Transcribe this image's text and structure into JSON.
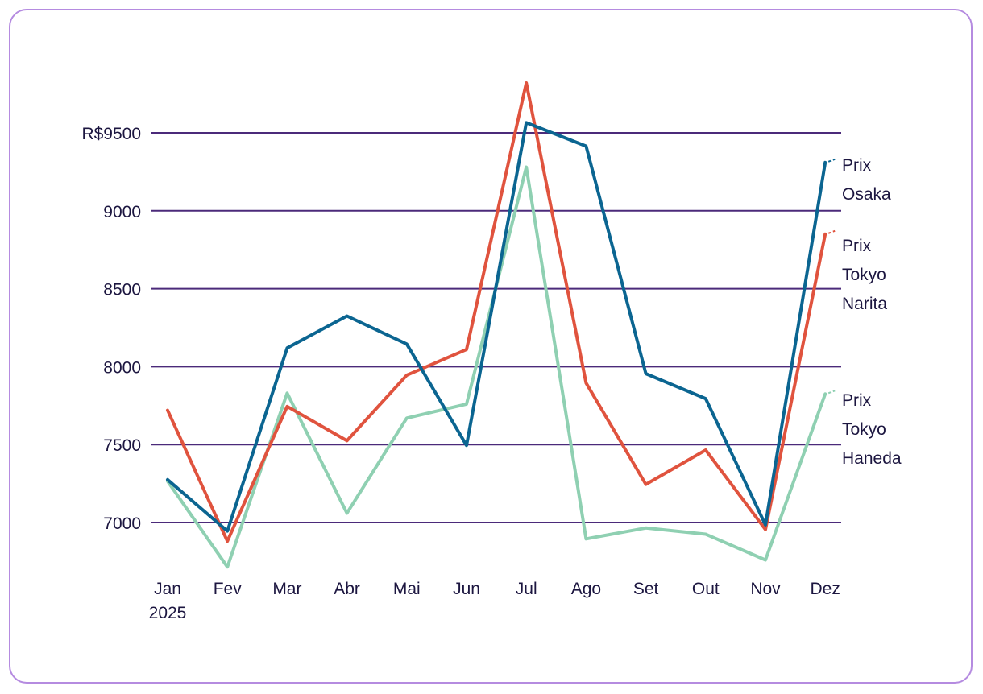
{
  "chart_data": {
    "type": "line",
    "x_labels": [
      "Jan",
      "Fev",
      "Mar",
      "Abr",
      "Mai",
      "Jun",
      "Jul",
      "Ago",
      "Set",
      "Out",
      "Nov",
      "Dez"
    ],
    "x_sublabel_first": "2025",
    "y_ticks": [
      "R$9500",
      "9000",
      "8500",
      "8000",
      "7500",
      "7000"
    ],
    "y_tick_values": [
      9500,
      9000,
      8500,
      8000,
      7500,
      7000
    ],
    "ylim": [
      6700,
      10000
    ],
    "grid": "horizontal",
    "legend": "direct labels at right end of lines",
    "series": [
      {
        "name": "Prix Osaka",
        "label_lines": [
          "Prix",
          "Osaka"
        ],
        "color": "#0b6591",
        "values": [
          7275,
          6945,
          8120,
          8325,
          8145,
          7495,
          9565,
          9415,
          7955,
          7795,
          6985,
          9310
        ]
      },
      {
        "name": "Prix Tokyo Narita",
        "label_lines": [
          "Prix",
          "Tokyo",
          "Narita"
        ],
        "color": "#e0533e",
        "values": [
          7720,
          6880,
          7745,
          7525,
          7945,
          8110,
          9820,
          7895,
          7245,
          7465,
          6955,
          8850
        ]
      },
      {
        "name": "Prix Tokyo Haneda",
        "label_lines": [
          "Prix",
          "Tokyo",
          "Haneda"
        ],
        "color": "#8fd0b2",
        "values": [
          7265,
          6715,
          7830,
          7060,
          7670,
          7760,
          9280,
          6895,
          6965,
          6925,
          6760,
          7825
        ]
      }
    ]
  },
  "colors": {
    "grid": "#4b2a7a",
    "border": "#b58be0",
    "text": "#1c1640"
  }
}
